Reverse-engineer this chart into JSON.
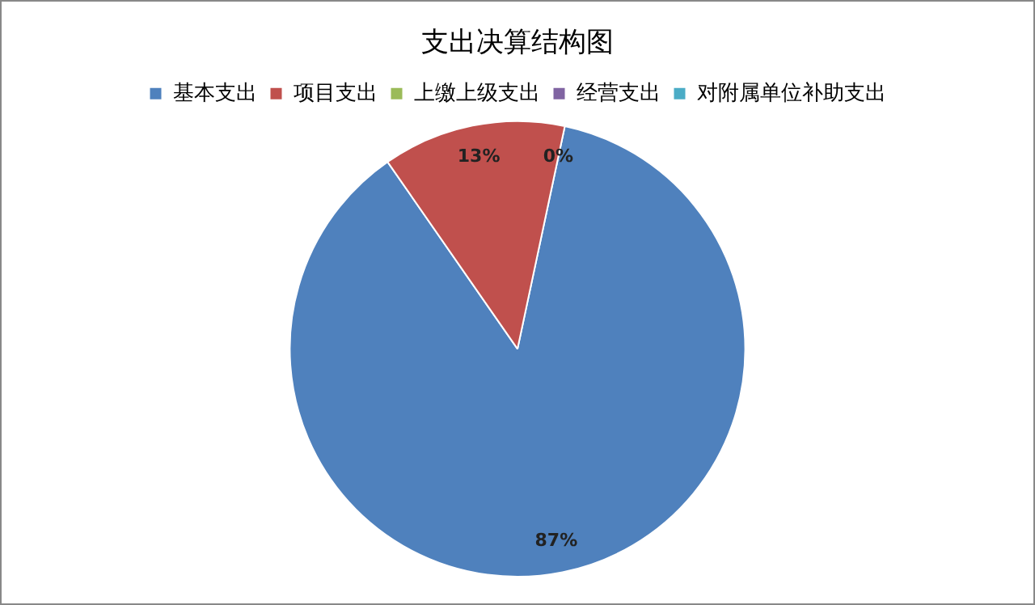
{
  "chart_data": {
    "type": "pie",
    "title": "支出决算结构图",
    "categories": [
      "基本支出",
      "项目支出",
      "上缴上级支出",
      "经营支出",
      "对附属单位补助支出"
    ],
    "values": [
      87,
      13,
      0,
      0,
      0
    ],
    "colors": [
      "#4f81bd",
      "#c0504d",
      "#9bbb59",
      "#8064a2",
      "#4bacc6"
    ],
    "value_labels": [
      "87%",
      "13%",
      "0%",
      null,
      null
    ],
    "legend": "top"
  }
}
